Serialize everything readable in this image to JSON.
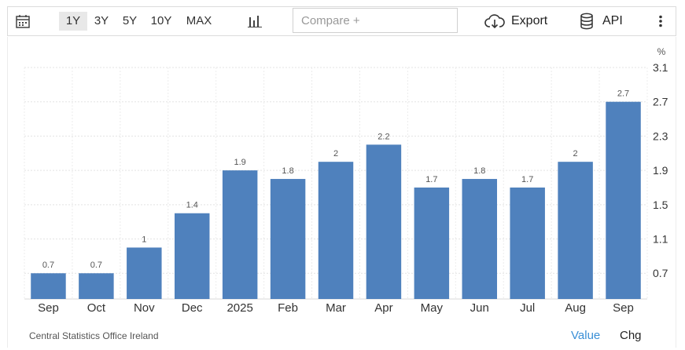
{
  "toolbar": {
    "ranges": [
      "1Y",
      "3Y",
      "5Y",
      "10Y",
      "MAX"
    ],
    "active_range": "1Y",
    "compare_placeholder": "Compare +",
    "export_label": "Export",
    "api_label": "API",
    "icons": [
      "calendar-icon",
      "bar-chart-icon",
      "cloud-download-icon",
      "database-icon",
      "more-vertical-icon"
    ]
  },
  "footer": {
    "source": "Central Statistics Office Ireland",
    "value_label": "Value",
    "chg_label": "Chg"
  },
  "colors": {
    "bar": "#4f81bd",
    "link": "#3a8fd6"
  },
  "chart_data": {
    "type": "bar",
    "categories": [
      "Sep",
      "Oct",
      "Nov",
      "Dec",
      "2025",
      "Feb",
      "Mar",
      "Apr",
      "May",
      "Jun",
      "Jul",
      "Aug",
      "Sep"
    ],
    "values": [
      0.7,
      0.7,
      1,
      1.4,
      1.9,
      1.8,
      2,
      2.2,
      1.7,
      1.8,
      1.7,
      2,
      2.7
    ],
    "value_labels": [
      "0.7",
      "0.7",
      "1",
      "1.4",
      "1.9",
      "1.8",
      "2",
      "2.2",
      "1.7",
      "1.8",
      "1.7",
      "2",
      "2.7"
    ],
    "unit": "%",
    "yticks": [
      "3.1",
      "2.7",
      "2.3",
      "1.9",
      "1.5",
      "1.1",
      "0.7"
    ],
    "ytick_values": [
      3.1,
      2.7,
      2.3,
      1.9,
      1.5,
      1.1,
      0.7
    ],
    "ylim": [
      0.4,
      3.1
    ],
    "y_axis_side": "right",
    "grid": true,
    "title": "",
    "xlabel": "",
    "ylabel": ""
  }
}
